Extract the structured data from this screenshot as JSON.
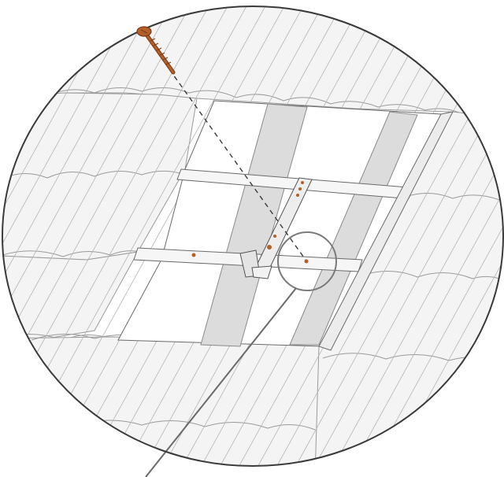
{
  "diagram": {
    "subject": "roof-hook-installation-detail",
    "colors": {
      "background": "#ffffff",
      "outline": "#3a3a3a",
      "tile_fill": "#f4f4f4",
      "tile_line": "#9a9a9a",
      "batten_fill": "#f6f6f6",
      "rafter_fill": "#dcdcdc",
      "screw": "#b5602a",
      "screw_dark": "#7a3a14",
      "dash": "#3a3a3a"
    },
    "icons": [
      "wood-screw-icon",
      "roof-hook-icon",
      "magnifier-circle-icon"
    ]
  }
}
